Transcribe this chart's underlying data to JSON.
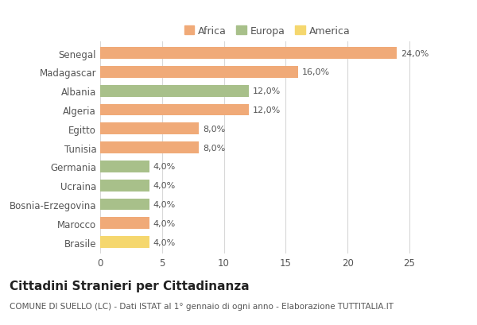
{
  "categories": [
    "Brasile",
    "Marocco",
    "Bosnia-Erzegovina",
    "Ucraina",
    "Germania",
    "Tunisia",
    "Egitto",
    "Algeria",
    "Albania",
    "Madagascar",
    "Senegal"
  ],
  "values": [
    4.0,
    4.0,
    4.0,
    4.0,
    4.0,
    8.0,
    8.0,
    12.0,
    12.0,
    16.0,
    24.0
  ],
  "colors": [
    "#f5d76e",
    "#f0aa78",
    "#a8c08a",
    "#a8c08a",
    "#a8c08a",
    "#f0aa78",
    "#f0aa78",
    "#f0aa78",
    "#a8c08a",
    "#f0aa78",
    "#f0aa78"
  ],
  "labels": [
    "4,0%",
    "4,0%",
    "4,0%",
    "4,0%",
    "4,0%",
    "8,0%",
    "8,0%",
    "12,0%",
    "12,0%",
    "16,0%",
    "24,0%"
  ],
  "legend_items": [
    {
      "label": "Africa",
      "color": "#f0aa78"
    },
    {
      "label": "Europa",
      "color": "#a8c08a"
    },
    {
      "label": "America",
      "color": "#f5d76e"
    }
  ],
  "xlim": [
    0,
    27
  ],
  "xticks": [
    0,
    5,
    10,
    15,
    20,
    25
  ],
  "title": "Cittadini Stranieri per Cittadinanza",
  "subtitle": "COMUNE DI SUELLO (LC) - Dati ISTAT al 1° gennaio di ogni anno - Elaborazione TUTTITALIA.IT",
  "bg_color": "#ffffff",
  "grid_color": "#d8d8d8",
  "bar_height": 0.62,
  "title_fontsize": 11,
  "subtitle_fontsize": 7.5,
  "label_fontsize": 8,
  "tick_fontsize": 8.5,
  "legend_fontsize": 9,
  "text_color": "#555555",
  "title_color": "#222222"
}
